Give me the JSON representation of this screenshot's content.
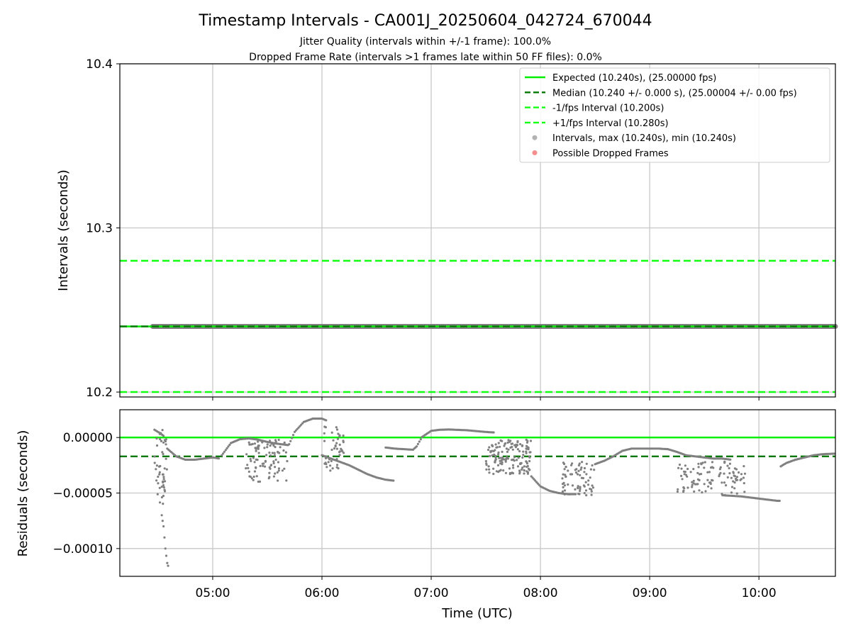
{
  "title": "Timestamp Intervals - CA001J_20250604_042724_670044",
  "subtitle_lines": [
    "Jitter Quality (intervals within +/-1 frame): 100.0%",
    "Dropped Frame Rate (intervals >1 frames late within 50 FF files): 0.0%"
  ],
  "colors": {
    "expected": "#00ee00",
    "median": "#007700",
    "fps_bounds": "#11ff11",
    "intervals": "#808080",
    "dropped": "#ee4444",
    "grid": "#c8c8c8"
  },
  "chart_data": [
    {
      "type": "line",
      "panel": "intervals",
      "ylabel": "Intervals (seconds)",
      "ylim": [
        10.197,
        10.4
      ],
      "yticks": [
        10.2,
        10.3,
        10.4
      ],
      "ytick_labels": [
        "10.2",
        "10.3",
        "10.4"
      ],
      "xlim": [
        "04:09",
        "10:42"
      ],
      "grid": true,
      "legend_position": "top-right",
      "legend": [
        "Expected (10.240s), (25.00000 fps)",
        "Median (10.240 +/- 0.000 s), (25.00004 +/- 0.00 fps)",
        "-1/fps Interval (10.200s)",
        "+1/fps Interval (10.280s)",
        "Intervals, max (10.240s), min (10.240s)",
        "Possible Dropped Frames"
      ],
      "reference_lines": [
        {
          "name": "Expected",
          "y": 10.24,
          "style": "solid"
        },
        {
          "name": "Median",
          "y": 10.24,
          "style": "dashed"
        },
        {
          "name": "-1/fps Interval",
          "y": 10.2,
          "style": "dashed"
        },
        {
          "name": "+1/fps Interval",
          "y": 10.28,
          "style": "dashed"
        }
      ],
      "intervals": {
        "x_start": "04:27",
        "x_end": "10:42",
        "y": 10.24
      },
      "dropped_frames": []
    },
    {
      "type": "scatter",
      "panel": "residuals",
      "xlabel": "Time (UTC)",
      "ylabel": "Residuals (seconds)",
      "ylim": [
        -0.000125,
        2.5e-05
      ],
      "yticks": [
        0,
        -5e-05,
        -0.0001
      ],
      "ytick_labels": [
        "0.00000",
        "−0.00005",
        "−0.00010"
      ],
      "xlim": [
        "04:09",
        "10:42"
      ],
      "xticks": [
        "05:00",
        "06:00",
        "07:00",
        "08:00",
        "09:00",
        "10:00"
      ],
      "grid": true,
      "reference_lines": [
        {
          "name": "Expected",
          "y": 0,
          "style": "solid"
        },
        {
          "name": "Median",
          "y": -1.7e-05,
          "style": "dashed"
        }
      ],
      "segments": [
        {
          "kind": "curve",
          "x": [
            "04:28",
            "04:31",
            "04:33",
            "04:35",
            "04:40",
            "04:45",
            "04:50",
            "04:55",
            "05:00",
            "05:04"
          ],
          "y": [
            7e-06,
            4e-06,
            1.5e-06,
            -1e-05,
            -1.7e-05,
            -2e-05,
            -2e-05,
            -1.9e-05,
            -1.8e-05,
            -1.9e-05
          ]
        },
        {
          "kind": "cloud",
          "x0": "04:28",
          "x1": "04:35",
          "ymin": -6e-05,
          "ymax": 7e-06,
          "n": 45
        },
        {
          "kind": "curve",
          "x": [
            "04:32",
            "04:33",
            "04:34",
            "04:35",
            "04:36"
          ],
          "y": [
            -7e-05,
            -8e-05,
            -0.0001,
            -0.000113,
            -0.000118
          ]
        },
        {
          "kind": "curve",
          "x": [
            "05:05",
            "05:10",
            "05:15",
            "05:20",
            "05:25",
            "05:30",
            "05:35",
            "05:40",
            "05:42"
          ],
          "y": [
            -1.6e-05,
            -5e-06,
            -1.5e-06,
            -8e-07,
            -2e-06,
            -4e-06,
            -5.5e-06,
            -6.5e-06,
            -7e-06
          ]
        },
        {
          "kind": "cloud",
          "x0": "05:18",
          "x1": "05:41",
          "ymin": -4e-05,
          "ymax": -2e-06,
          "n": 95
        },
        {
          "kind": "curve",
          "x": [
            "05:42",
            "05:45",
            "05:50",
            "05:55",
            "06:00",
            "06:03"
          ],
          "y": [
            -6e-06,
            5e-06,
            1.4e-05,
            1.7e-05,
            1.7e-05,
            1.5e-05
          ]
        },
        {
          "kind": "curve",
          "x": [
            "06:00",
            "06:05",
            "06:10",
            "06:15",
            "06:20",
            "06:25",
            "06:30",
            "06:35",
            "06:40"
          ],
          "y": [
            -1.6e-05,
            -1.9e-05,
            -2.2e-05,
            -2.5e-05,
            -2.9e-05,
            -3.3e-05,
            -3.6e-05,
            -3.8e-05,
            -3.9e-05
          ]
        },
        {
          "kind": "cloud",
          "x0": "06:01",
          "x1": "06:12",
          "ymin": -3e-05,
          "ymax": 1e-05,
          "n": 45
        },
        {
          "kind": "curve",
          "x": [
            "06:35",
            "06:40",
            "06:45",
            "06:50",
            "06:52",
            "06:55",
            "07:00",
            "07:05",
            "07:10",
            "07:20",
            "07:30",
            "07:35"
          ],
          "y": [
            -9e-06,
            -1e-05,
            -1.05e-05,
            -1.1e-05,
            -8e-06,
            5e-07,
            6e-06,
            7e-06,
            7.2e-06,
            6.5e-06,
            5e-06,
            4.5e-06
          ]
        },
        {
          "kind": "cloud",
          "x0": "07:30",
          "x1": "07:55",
          "ymin": -3.3e-05,
          "ymax": -2e-06,
          "n": 150
        },
        {
          "kind": "curve",
          "x": [
            "07:55",
            "08:00",
            "08:05",
            "08:10",
            "08:15",
            "08:20"
          ],
          "y": [
            -3.5e-05,
            -4.4e-05,
            -4.8e-05,
            -5e-05,
            -5.1e-05,
            -5.1e-05
          ]
        },
        {
          "kind": "cloud",
          "x0": "08:12",
          "x1": "08:30",
          "ymin": -5.2e-05,
          "ymax": -2e-05,
          "n": 70
        },
        {
          "kind": "curve",
          "x": [
            "08:30",
            "08:35",
            "08:40",
            "08:45",
            "08:50",
            "09:00",
            "09:05",
            "09:10",
            "09:15",
            "09:20",
            "09:25",
            "09:30",
            "09:35",
            "09:40",
            "09:45"
          ],
          "y": [
            -2.4e-05,
            -2.1e-05,
            -1.7e-05,
            -1.2e-05,
            -1e-05,
            -1e-05,
            -1e-05,
            -1.05e-05,
            -1.3e-05,
            -1.6e-05,
            -1.7e-05,
            -1.8e-05,
            -1.9e-05,
            -1.9e-05,
            -2e-05
          ]
        },
        {
          "kind": "cloud",
          "x0": "09:15",
          "x1": "09:35",
          "ymin": -5e-05,
          "ymax": -2.1e-05,
          "n": 60
        },
        {
          "kind": "cloud",
          "x0": "09:38",
          "x1": "09:53",
          "ymin": -5.2e-05,
          "ymax": -2.1e-05,
          "n": 45
        },
        {
          "kind": "curve",
          "x": [
            "09:40",
            "09:50",
            "10:00",
            "10:05",
            "10:10",
            "10:12"
          ],
          "y": [
            -5.2e-05,
            -5.3e-05,
            -5.5e-05,
            -5.6e-05,
            -5.7e-05,
            -5.7e-05
          ]
        },
        {
          "kind": "curve",
          "x": [
            "10:12",
            "10:15",
            "10:20",
            "10:25",
            "10:30",
            "10:35",
            "10:42"
          ],
          "y": [
            -2.6e-05,
            -2.3e-05,
            -2e-05,
            -1.8e-05,
            -1.6e-05,
            -1.5e-05,
            -1.45e-05
          ]
        }
      ]
    }
  ]
}
